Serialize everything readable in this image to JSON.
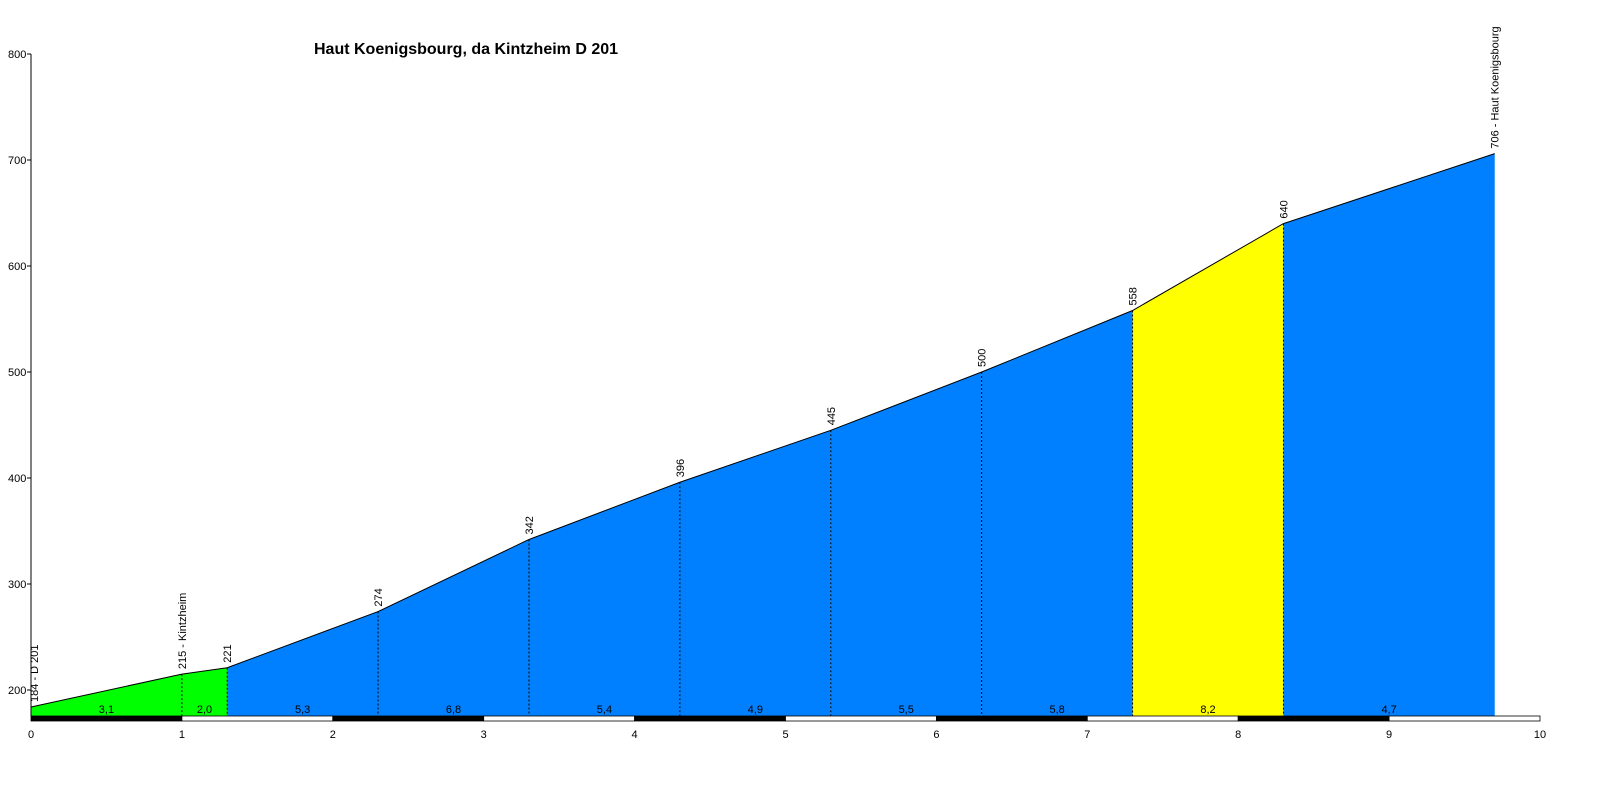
{
  "chart_data": {
    "type": "area",
    "title": "Haut Koenigsbourg, da Kintzheim D 201",
    "xlabel": "",
    "ylabel": "",
    "xlim": [
      0,
      10
    ],
    "ylim": [
      170,
      800
    ],
    "x_ticks": [
      0,
      1,
      2,
      3,
      4,
      5,
      6,
      7,
      8,
      9,
      10
    ],
    "y_ticks": [
      200,
      300,
      400,
      500,
      600,
      700,
      800
    ],
    "x_tick_labels": [
      "0",
      "1",
      "2",
      "3",
      "4",
      "5",
      "6",
      "7",
      "8",
      "9",
      "10"
    ],
    "y_tick_labels": [
      "200",
      "300",
      "400",
      "500",
      "600",
      "700",
      "800"
    ],
    "points": [
      {
        "x": 0,
        "y": 184,
        "label": "184 - D 201"
      },
      {
        "x": 1.0,
        "y": 215,
        "label": "215 - Kintzheim"
      },
      {
        "x": 1.3,
        "y": 221,
        "label": "221"
      },
      {
        "x": 2.3,
        "y": 274,
        "label": "274"
      },
      {
        "x": 3.3,
        "y": 342,
        "label": "342"
      },
      {
        "x": 4.3,
        "y": 396,
        "label": "396"
      },
      {
        "x": 5.3,
        "y": 445,
        "label": "445"
      },
      {
        "x": 6.3,
        "y": 500,
        "label": "500"
      },
      {
        "x": 7.3,
        "y": 558,
        "label": "558"
      },
      {
        "x": 8.3,
        "y": 640,
        "label": "640"
      },
      {
        "x": 9.7,
        "y": 706,
        "label": "706 - Haut Koenigsbourg"
      }
    ],
    "segments": [
      {
        "gradient": "3,1",
        "color": "#00ff00"
      },
      {
        "gradient": "2,0",
        "color": "#00ff00"
      },
      {
        "gradient": "5,3",
        "color": "#0080ff"
      },
      {
        "gradient": "6,8",
        "color": "#0080ff"
      },
      {
        "gradient": "5,4",
        "color": "#0080ff"
      },
      {
        "gradient": "4,9",
        "color": "#0080ff"
      },
      {
        "gradient": "5,5",
        "color": "#0080ff"
      },
      {
        "gradient": "5,8",
        "color": "#0080ff"
      },
      {
        "gradient": "8,2",
        "color": "#ffff00"
      },
      {
        "gradient": "4,7",
        "color": "#0080ff"
      }
    ],
    "grid": false,
    "legend": "none"
  }
}
